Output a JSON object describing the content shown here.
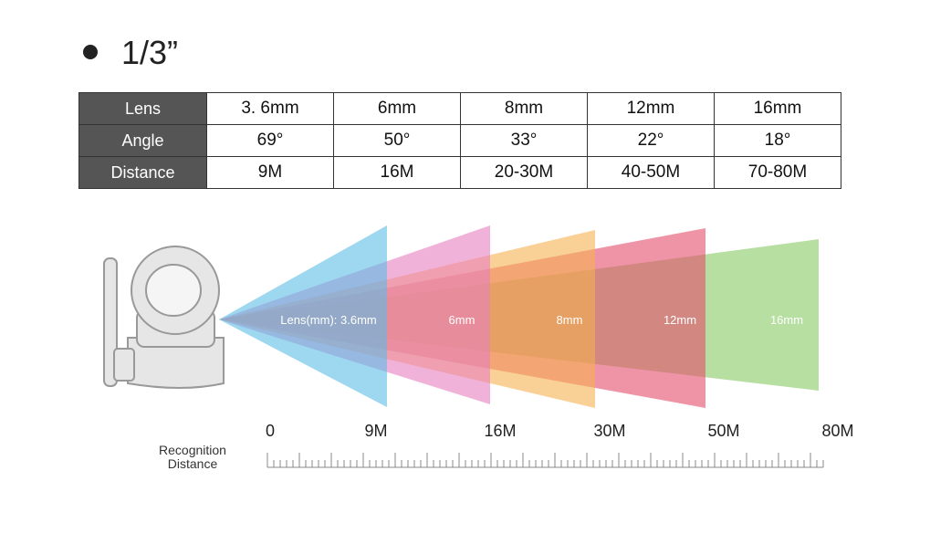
{
  "heading": "1/3”",
  "table": {
    "rows": [
      [
        "Lens",
        "3. 6mm",
        "6mm",
        "8mm",
        "12mm",
        "16mm"
      ],
      [
        "Angle",
        "69°",
        "50°",
        "33°",
        "22°",
        "18°"
      ],
      [
        "Distance",
        "9M",
        "16M",
        "20-30M",
        "40-50M",
        "70-80M"
      ]
    ]
  },
  "beams": [
    {
      "label": "Lens(mm): 3.6mm"
    },
    {
      "label": "6mm"
    },
    {
      "label": "8mm"
    },
    {
      "label": "12mm"
    },
    {
      "label": "16mm"
    }
  ],
  "scale": {
    "title": [
      "Recognition",
      "Distance"
    ],
    "labels": [
      "0",
      "9M",
      "16M",
      "30M",
      "50M",
      "80M"
    ]
  }
}
